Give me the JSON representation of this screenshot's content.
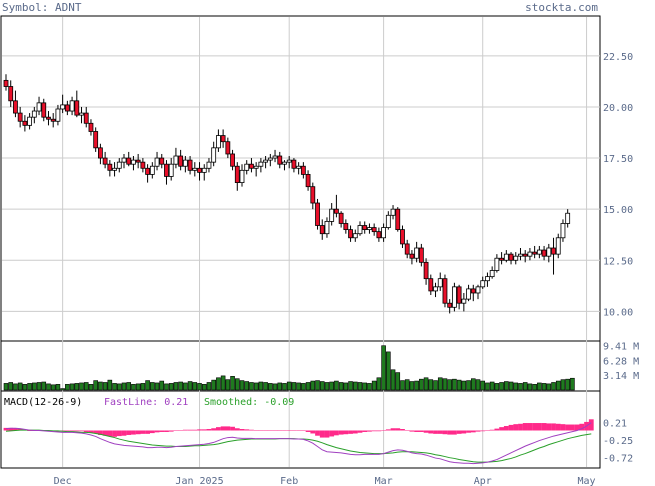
{
  "header": {
    "symbol_label": "Symbol: ADNT",
    "site": "stockta.com"
  },
  "colors": {
    "up_candle": "#ffffff",
    "down_candle": "#e8102a",
    "volume": "#1f7a1f",
    "macd_hist": "#ff2a8a",
    "fast_line": "#a040c0",
    "smoothed_line": "#2aa02a",
    "grid": "#cccccc",
    "frame": "#000000"
  },
  "price_axis": {
    "ticks": [
      "22.50",
      "20.00",
      "17.50",
      "15.00",
      "12.50",
      "10.00"
    ],
    "tick_values": [
      22.5,
      20.0,
      17.5,
      15.0,
      12.5,
      10.0
    ],
    "ylim": [
      8.6,
      24.4
    ]
  },
  "volume_axis": {
    "ticks": [
      "9.41 M",
      "6.28 M",
      "3.14 M"
    ],
    "tick_values": [
      9.41,
      6.28,
      3.14
    ],
    "ylim": [
      0,
      10.2
    ]
  },
  "macd": {
    "label": "MACD(12-26-9)",
    "fast_label": "FastLine: 0.21",
    "smoothed_label": "Smoothed: -0.09",
    "ticks": [
      "0.21",
      "-0.25",
      "-0.72"
    ],
    "tick_values": [
      0.21,
      -0.25,
      -0.72
    ],
    "ylim": [
      -0.98,
      0.55
    ]
  },
  "x_axis": {
    "labels": [
      "Dec",
      "Jan 2025",
      "Feb",
      "Mar",
      "Apr",
      "May"
    ],
    "label_bar_index": [
      12,
      41,
      60,
      80,
      101,
      123
    ]
  },
  "chart_data": {
    "type": "candlestick",
    "symbol": "ADNT",
    "ohlc": [
      [
        21.3,
        21.6,
        20.8,
        21.0
      ],
      [
        21.0,
        21.3,
        20.0,
        20.3
      ],
      [
        20.3,
        20.8,
        19.5,
        19.7
      ],
      [
        19.7,
        20.0,
        19.0,
        19.3
      ],
      [
        19.3,
        19.6,
        18.8,
        19.1
      ],
      [
        19.1,
        19.7,
        18.9,
        19.5
      ],
      [
        19.5,
        20.0,
        19.2,
        19.8
      ],
      [
        19.8,
        20.5,
        19.6,
        20.2
      ],
      [
        20.2,
        20.4,
        19.3,
        19.5
      ],
      [
        19.5,
        19.8,
        19.1,
        19.4
      ],
      [
        19.4,
        19.7,
        19.0,
        19.3
      ],
      [
        19.3,
        20.1,
        19.1,
        19.9
      ],
      [
        19.9,
        20.6,
        19.7,
        20.1
      ],
      [
        20.1,
        20.3,
        19.6,
        19.8
      ],
      [
        19.8,
        20.5,
        19.6,
        20.3
      ],
      [
        20.3,
        20.8,
        19.5,
        19.6
      ],
      [
        19.6,
        20.0,
        19.2,
        19.7
      ],
      [
        19.7,
        20.0,
        19.0,
        19.2
      ],
      [
        19.2,
        19.4,
        18.6,
        18.8
      ],
      [
        18.8,
        19.0,
        17.8,
        18.0
      ],
      [
        18.0,
        18.2,
        17.2,
        17.5
      ],
      [
        17.5,
        17.8,
        17.0,
        17.2
      ],
      [
        17.2,
        17.4,
        16.6,
        16.9
      ],
      [
        16.9,
        17.3,
        16.6,
        17.0
      ],
      [
        17.0,
        17.5,
        16.8,
        17.3
      ],
      [
        17.3,
        17.7,
        17.0,
        17.5
      ],
      [
        17.5,
        17.8,
        17.1,
        17.2
      ],
      [
        17.2,
        17.6,
        16.9,
        17.4
      ],
      [
        17.4,
        17.7,
        17.0,
        17.3
      ],
      [
        17.3,
        17.5,
        16.8,
        17.0
      ],
      [
        17.0,
        17.2,
        16.3,
        16.7
      ],
      [
        16.7,
        17.3,
        16.5,
        17.1
      ],
      [
        17.1,
        17.8,
        16.9,
        17.5
      ],
      [
        17.5,
        17.7,
        17.0,
        17.2
      ],
      [
        17.2,
        17.4,
        16.2,
        16.6
      ],
      [
        16.6,
        17.5,
        16.4,
        17.2
      ],
      [
        17.2,
        18.0,
        17.0,
        17.6
      ],
      [
        17.6,
        17.9,
        16.9,
        17.1
      ],
      [
        17.1,
        17.6,
        16.8,
        17.4
      ],
      [
        17.4,
        17.6,
        16.7,
        16.9
      ],
      [
        16.9,
        17.3,
        16.6,
        17.0
      ],
      [
        17.0,
        17.3,
        16.4,
        16.8
      ],
      [
        16.8,
        17.2,
        16.4,
        17.0
      ],
      [
        17.0,
        17.5,
        16.8,
        17.3
      ],
      [
        17.3,
        18.3,
        17.1,
        18.0
      ],
      [
        18.0,
        18.9,
        17.8,
        18.6
      ],
      [
        18.6,
        18.9,
        18.0,
        18.3
      ],
      [
        18.3,
        18.5,
        17.5,
        17.7
      ],
      [
        17.7,
        17.9,
        16.9,
        17.1
      ],
      [
        17.1,
        17.3,
        15.9,
        16.3
      ],
      [
        16.3,
        17.2,
        16.1,
        16.9
      ],
      [
        16.9,
        17.4,
        16.7,
        17.2
      ],
      [
        17.2,
        17.5,
        16.8,
        17.0
      ],
      [
        17.0,
        17.3,
        16.6,
        17.1
      ],
      [
        17.1,
        17.5,
        16.8,
        17.3
      ],
      [
        17.3,
        17.6,
        17.0,
        17.4
      ],
      [
        17.4,
        17.7,
        17.1,
        17.5
      ],
      [
        17.5,
        17.9,
        17.3,
        17.6
      ],
      [
        17.6,
        17.8,
        17.0,
        17.2
      ],
      [
        17.2,
        17.4,
        16.9,
        17.3
      ],
      [
        17.3,
        17.6,
        17.0,
        17.4
      ],
      [
        17.4,
        17.5,
        16.8,
        17.0
      ],
      [
        17.0,
        17.3,
        16.7,
        17.1
      ],
      [
        17.1,
        17.3,
        16.5,
        16.7
      ],
      [
        16.7,
        16.9,
        15.9,
        16.1
      ],
      [
        16.1,
        16.3,
        15.0,
        15.3
      ],
      [
        15.3,
        15.5,
        14.0,
        14.2
      ],
      [
        14.2,
        14.5,
        13.5,
        13.8
      ],
      [
        13.8,
        14.6,
        13.6,
        14.4
      ],
      [
        14.4,
        15.3,
        14.2,
        15.0
      ],
      [
        15.0,
        15.7,
        14.6,
        14.8
      ],
      [
        14.8,
        14.9,
        14.1,
        14.3
      ],
      [
        14.3,
        14.5,
        13.8,
        14.0
      ],
      [
        14.0,
        14.2,
        13.4,
        13.6
      ],
      [
        13.6,
        14.0,
        13.4,
        13.8
      ],
      [
        13.8,
        14.4,
        13.7,
        14.2
      ],
      [
        14.2,
        14.4,
        13.8,
        14.0
      ],
      [
        14.0,
        14.3,
        13.8,
        14.1
      ],
      [
        14.1,
        14.3,
        13.7,
        13.9
      ],
      [
        13.9,
        14.1,
        13.4,
        13.6
      ],
      [
        13.6,
        14.3,
        13.4,
        14.1
      ],
      [
        14.1,
        14.9,
        14.0,
        14.7
      ],
      [
        14.7,
        15.2,
        14.5,
        15.0
      ],
      [
        15.0,
        15.1,
        13.9,
        14.0
      ],
      [
        14.0,
        14.2,
        13.1,
        13.3
      ],
      [
        13.3,
        13.5,
        12.6,
        12.8
      ],
      [
        12.8,
        13.0,
        12.3,
        12.6
      ],
      [
        12.6,
        13.4,
        12.4,
        13.1
      ],
      [
        13.1,
        13.3,
        12.2,
        12.4
      ],
      [
        12.4,
        12.6,
        11.3,
        11.6
      ],
      [
        11.6,
        11.8,
        10.8,
        11.0
      ],
      [
        11.0,
        11.4,
        10.7,
        11.2
      ],
      [
        11.2,
        11.9,
        11.0,
        11.6
      ],
      [
        11.6,
        11.8,
        10.2,
        10.4
      ],
      [
        10.4,
        10.6,
        9.9,
        10.2
      ],
      [
        10.2,
        11.4,
        10.0,
        11.2
      ],
      [
        11.2,
        11.3,
        10.1,
        10.4
      ],
      [
        10.4,
        10.9,
        10.0,
        10.6
      ],
      [
        10.6,
        11.3,
        10.5,
        11.1
      ],
      [
        11.1,
        11.3,
        10.5,
        10.9
      ],
      [
        10.9,
        11.3,
        10.6,
        11.2
      ],
      [
        11.2,
        11.7,
        11.1,
        11.5
      ],
      [
        11.5,
        11.9,
        11.2,
        11.7
      ],
      [
        11.7,
        12.2,
        11.6,
        12.0
      ],
      [
        12.0,
        12.8,
        11.9,
        12.6
      ],
      [
        12.6,
        12.9,
        12.3,
        12.5
      ],
      [
        12.5,
        13.0,
        12.4,
        12.8
      ],
      [
        12.8,
        12.9,
        12.3,
        12.5
      ],
      [
        12.5,
        12.9,
        12.3,
        12.7
      ],
      [
        12.7,
        13.1,
        12.5,
        12.8
      ],
      [
        12.8,
        13.0,
        12.4,
        12.7
      ],
      [
        12.7,
        13.1,
        12.5,
        12.9
      ],
      [
        12.9,
        13.2,
        12.6,
        12.8
      ],
      [
        12.8,
        13.2,
        12.6,
        13.0
      ],
      [
        13.0,
        13.2,
        12.5,
        12.7
      ],
      [
        12.7,
        13.3,
        12.4,
        13.1
      ],
      [
        13.1,
        13.6,
        11.8,
        12.8
      ],
      [
        12.8,
        13.8,
        12.6,
        13.6
      ],
      [
        13.6,
        14.5,
        13.4,
        14.3
      ],
      [
        14.3,
        15.0,
        14.1,
        14.8
      ]
    ],
    "volume_m": [
      1.4,
      1.6,
      1.3,
      1.5,
      1.2,
      1.4,
      1.5,
      1.6,
      1.7,
      1.3,
      1.1,
      1.2,
      0.3,
      1.2,
      1.3,
      1.4,
      1.5,
      1.6,
      1.2,
      2.0,
      1.7,
      1.6,
      2.1,
      1.4,
      1.3,
      1.5,
      1.6,
      1.2,
      1.3,
      1.4,
      2.0,
      1.6,
      1.5,
      1.9,
      1.3,
      1.4,
      1.6,
      1.7,
      1.5,
      1.8,
      1.6,
      1.4,
      1.2,
      1.6,
      2.1,
      2.6,
      3.0,
      2.2,
      2.9,
      2.4,
      2.0,
      1.8,
      1.6,
      1.5,
      1.7,
      1.6,
      1.4,
      1.3,
      1.5,
      1.4,
      1.7,
      1.6,
      1.5,
      1.4,
      1.6,
      1.9,
      2.0,
      1.8,
      1.6,
      1.7,
      1.9,
      1.6,
      1.5,
      1.8,
      1.7,
      1.6,
      1.5,
      1.4,
      1.9,
      2.6,
      9.41,
      8.1,
      4.3,
      3.7,
      2.0,
      2.2,
      1.8,
      1.9,
      2.3,
      2.6,
      2.2,
      2.0,
      2.6,
      2.4,
      2.2,
      2.3,
      2.1,
      1.9,
      2.0,
      2.4,
      2.2,
      1.9,
      1.5,
      1.7,
      1.4,
      1.6,
      1.8,
      1.7,
      1.5,
      1.4,
      1.6,
      1.3,
      1.2,
      1.5,
      1.4,
      1.3,
      1.6,
      1.9,
      2.2,
      2.3,
      2.5
    ],
    "macd_fast": [
      0.05,
      0.06,
      0.06,
      0.05,
      0.03,
      0.01,
      0.0,
      0.0,
      -0.01,
      -0.02,
      -0.03,
      -0.04,
      -0.05,
      -0.05,
      -0.05,
      -0.06,
      -0.07,
      -0.09,
      -0.12,
      -0.16,
      -0.22,
      -0.27,
      -0.32,
      -0.36,
      -0.38,
      -0.4,
      -0.41,
      -0.42,
      -0.43,
      -0.44,
      -0.46,
      -0.46,
      -0.45,
      -0.45,
      -0.46,
      -0.45,
      -0.43,
      -0.42,
      -0.41,
      -0.4,
      -0.39,
      -0.38,
      -0.37,
      -0.35,
      -0.32,
      -0.27,
      -0.22,
      -0.19,
      -0.18,
      -0.2,
      -0.21,
      -0.21,
      -0.21,
      -0.22,
      -0.22,
      -0.22,
      -0.22,
      -0.22,
      -0.22,
      -0.22,
      -0.22,
      -0.23,
      -0.23,
      -0.24,
      -0.28,
      -0.34,
      -0.43,
      -0.52,
      -0.57,
      -0.58,
      -0.59,
      -0.6,
      -0.62,
      -0.64,
      -0.65,
      -0.65,
      -0.64,
      -0.64,
      -0.64,
      -0.64,
      -0.62,
      -0.58,
      -0.54,
      -0.52,
      -0.53,
      -0.56,
      -0.6,
      -0.62,
      -0.63,
      -0.66,
      -0.7,
      -0.74,
      -0.76,
      -0.8,
      -0.84,
      -0.86,
      -0.87,
      -0.88,
      -0.88,
      -0.89,
      -0.88,
      -0.87,
      -0.85,
      -0.82,
      -0.78,
      -0.72,
      -0.66,
      -0.6,
      -0.54,
      -0.48,
      -0.42,
      -0.37,
      -0.32,
      -0.27,
      -0.23,
      -0.19,
      -0.15,
      -0.12,
      -0.09,
      -0.06,
      -0.03,
      0.0,
      0.05,
      0.12,
      0.21
    ],
    "macd_smoothed": [
      -0.02,
      -0.01,
      0.0,
      0.01,
      0.01,
      0.01,
      0.01,
      0.01,
      0.0,
      0.0,
      -0.01,
      -0.01,
      -0.02,
      -0.03,
      -0.03,
      -0.04,
      -0.05,
      -0.05,
      -0.06,
      -0.08,
      -0.1,
      -0.13,
      -0.16,
      -0.19,
      -0.23,
      -0.26,
      -0.29,
      -0.31,
      -0.33,
      -0.35,
      -0.37,
      -0.39,
      -0.4,
      -0.41,
      -0.42,
      -0.42,
      -0.43,
      -0.43,
      -0.43,
      -0.42,
      -0.41,
      -0.41,
      -0.4,
      -0.39,
      -0.38,
      -0.36,
      -0.33,
      -0.3,
      -0.28,
      -0.26,
      -0.25,
      -0.24,
      -0.23,
      -0.23,
      -0.23,
      -0.23,
      -0.23,
      -0.23,
      -0.22,
      -0.22,
      -0.22,
      -0.22,
      -0.23,
      -0.23,
      -0.24,
      -0.26,
      -0.29,
      -0.33,
      -0.38,
      -0.42,
      -0.46,
      -0.49,
      -0.52,
      -0.55,
      -0.57,
      -0.59,
      -0.6,
      -0.61,
      -0.62,
      -0.62,
      -0.62,
      -0.61,
      -0.6,
      -0.58,
      -0.57,
      -0.57,
      -0.57,
      -0.58,
      -0.59,
      -0.6,
      -0.62,
      -0.65,
      -0.67,
      -0.7,
      -0.73,
      -0.75,
      -0.78,
      -0.8,
      -0.82,
      -0.84,
      -0.85,
      -0.85,
      -0.85,
      -0.84,
      -0.83,
      -0.81,
      -0.78,
      -0.75,
      -0.71,
      -0.66,
      -0.62,
      -0.57,
      -0.52,
      -0.47,
      -0.43,
      -0.38,
      -0.34,
      -0.3,
      -0.26,
      -0.22,
      -0.19,
      -0.16,
      -0.13,
      -0.11,
      -0.09
    ]
  }
}
